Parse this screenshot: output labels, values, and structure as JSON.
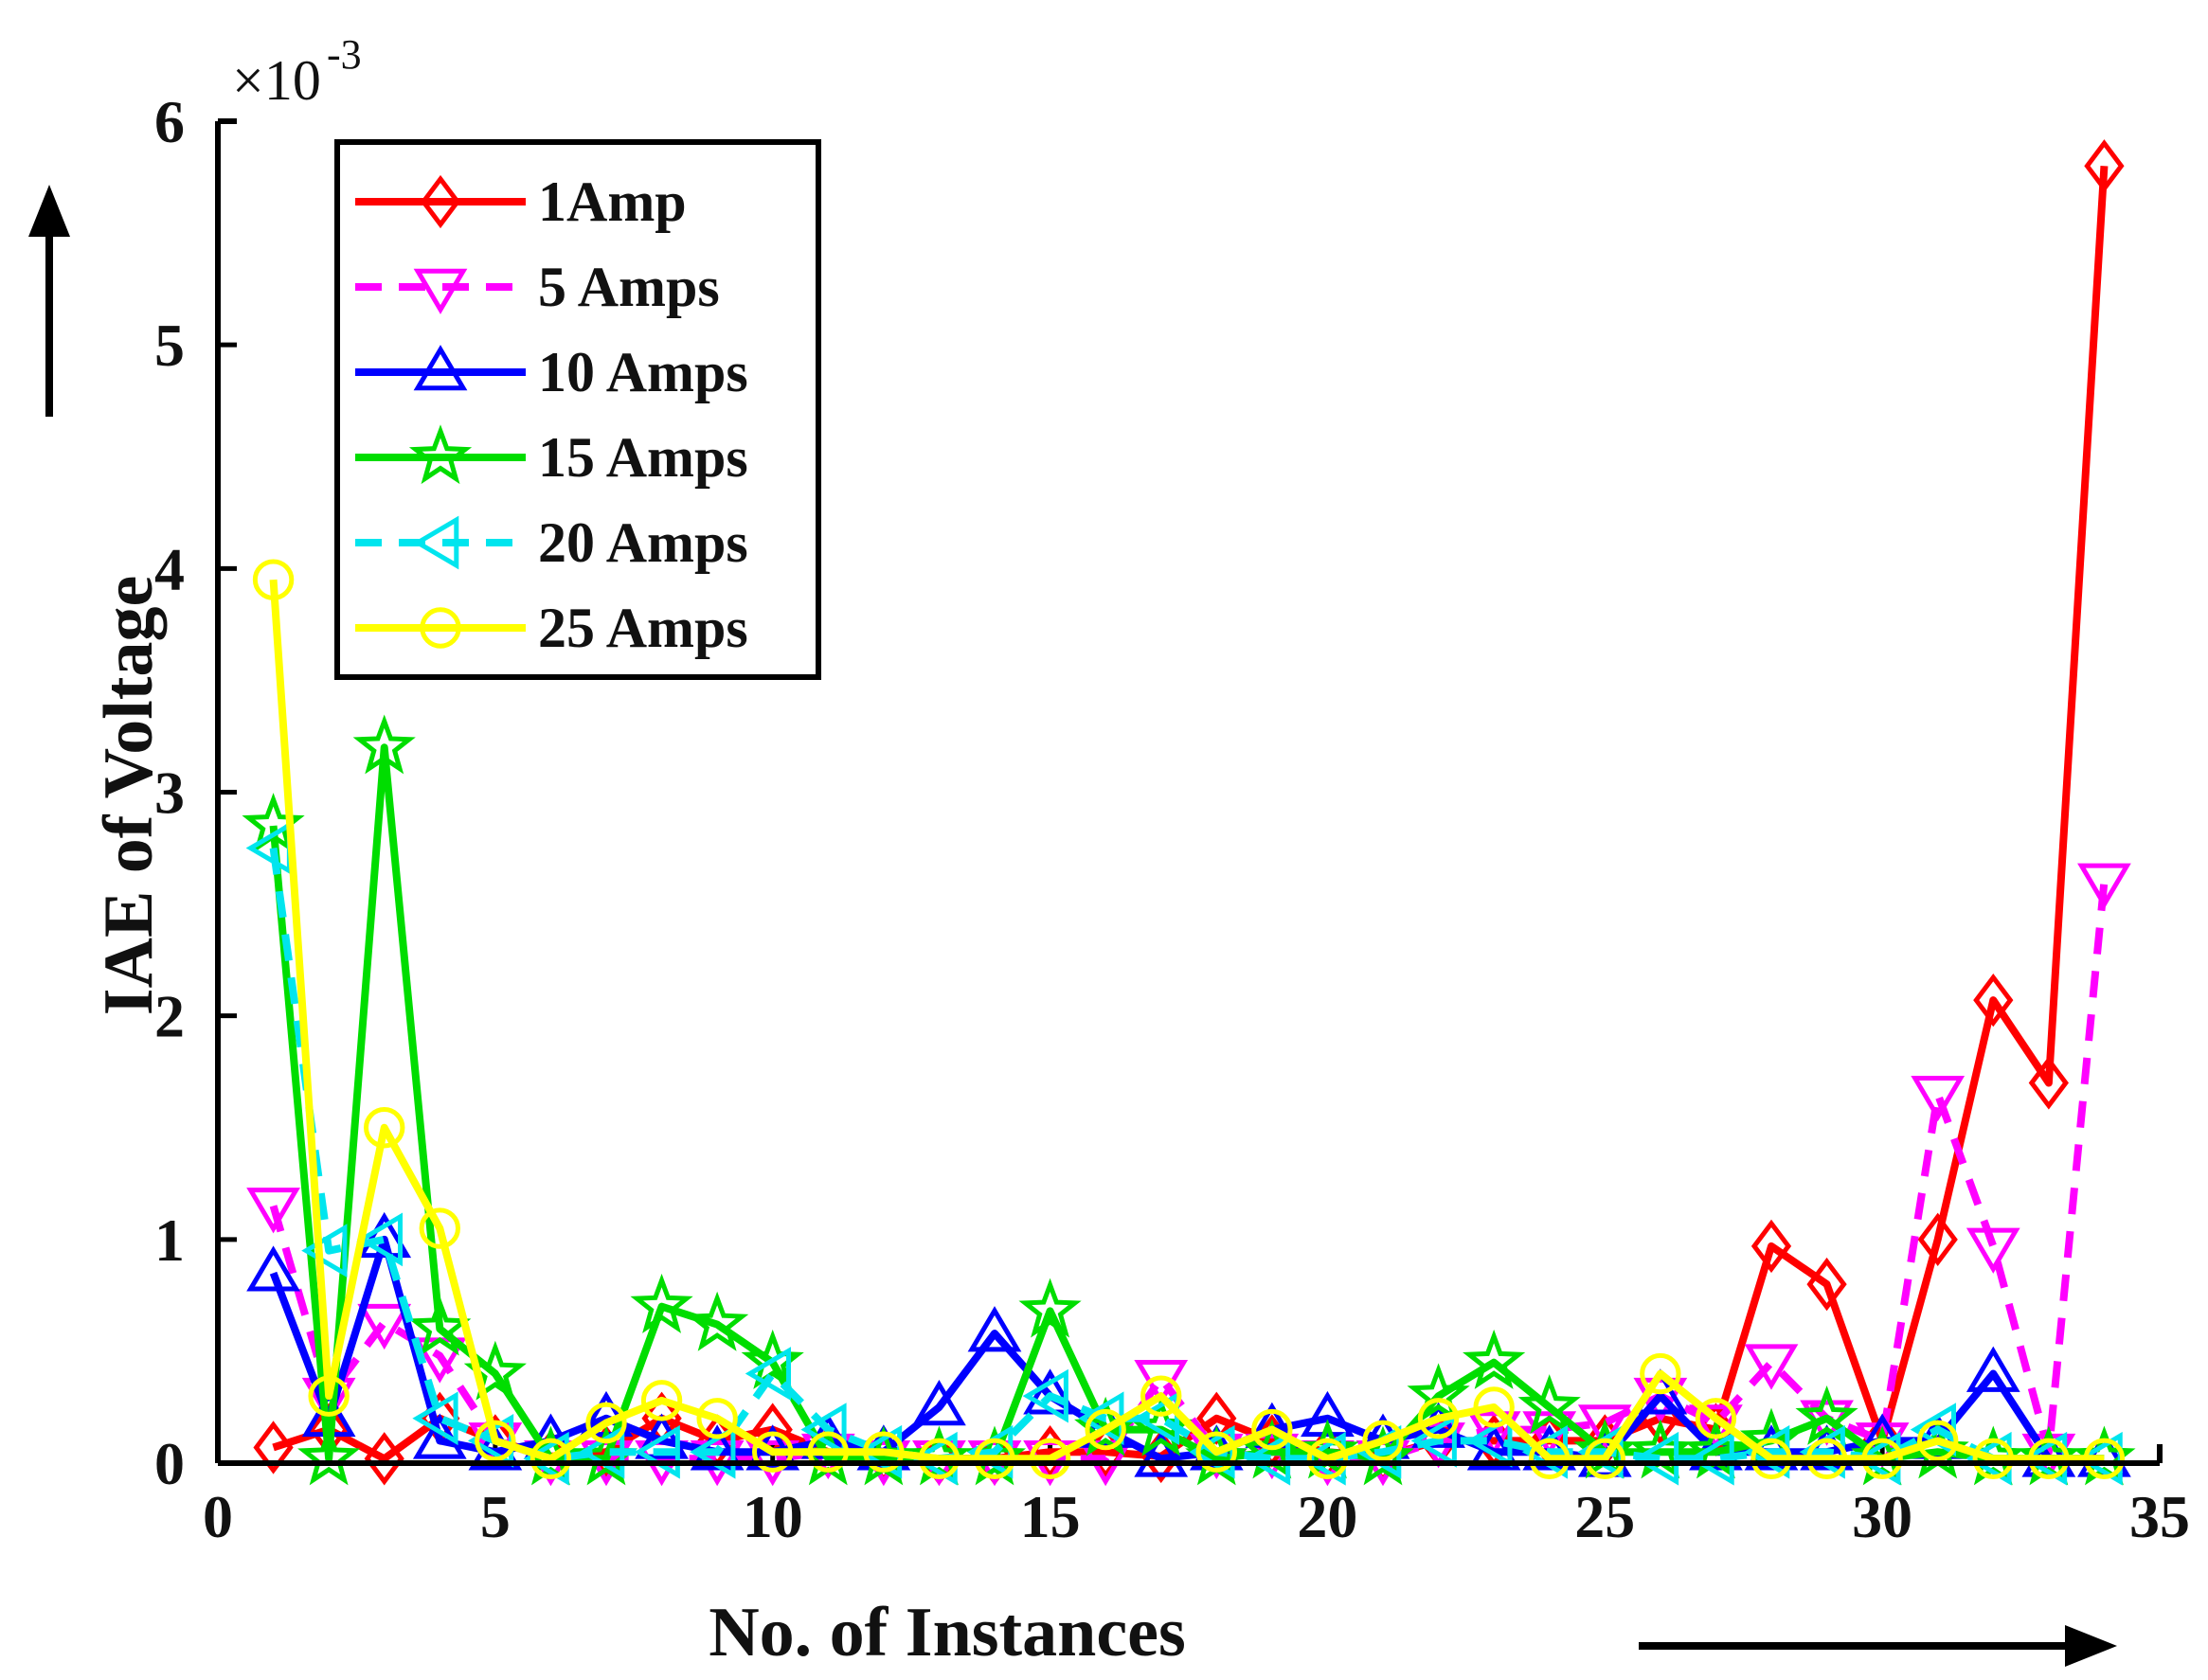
{
  "chart_data": {
    "type": "line",
    "title": "",
    "xlabel": "No. of Instances",
    "ylabel": "IAE of Voltage",
    "xlim": [
      0,
      35
    ],
    "ylim": [
      0,
      6
    ],
    "xticks": [
      0,
      5,
      10,
      15,
      20,
      25,
      30,
      35
    ],
    "yticks": [
      0,
      1,
      2,
      3,
      4,
      5,
      6
    ],
    "y_multiplier": "×10",
    "y_exponent": "-3",
    "legend_position": "top-left",
    "x": [
      1,
      2,
      3,
      4,
      5,
      6,
      7,
      8,
      9,
      10,
      11,
      12,
      13,
      14,
      15,
      16,
      17,
      18,
      19,
      20,
      21,
      22,
      23,
      24,
      25,
      26,
      27,
      28,
      29,
      30,
      31,
      32,
      33,
      34
    ],
    "series": [
      {
        "name": "1Amp",
        "color": "#ff0000",
        "dash": "solid",
        "marker": "diamond",
        "values": [
          0.07,
          0.15,
          0.02,
          0.2,
          0.1,
          0.03,
          0.05,
          0.2,
          0.1,
          0.15,
          0.05,
          0.03,
          0.02,
          0.02,
          0.05,
          0.05,
          0.03,
          0.2,
          0.1,
          0.05,
          0.03,
          0.1,
          0.1,
          0.1,
          0.1,
          0.2,
          0.15,
          0.97,
          0.8,
          0.1,
          1.0,
          2.07,
          1.7,
          5.8
        ]
      },
      {
        "name": "5 Amps",
        "color": "#ff00ff",
        "dash": "dashed",
        "marker": "triangle-down",
        "values": [
          1.15,
          0.3,
          0.63,
          0.48,
          0.1,
          0.02,
          0.02,
          0.02,
          0.02,
          0.02,
          0.05,
          0.02,
          0.02,
          0.02,
          0.02,
          0.02,
          0.38,
          0.05,
          0.05,
          0.02,
          0.02,
          0.1,
          0.15,
          0.15,
          0.18,
          0.3,
          0.18,
          0.45,
          0.2,
          0.1,
          1.65,
          0.97,
          0.05,
          2.6
        ]
      },
      {
        "name": "10 Amps",
        "color": "#0000ff",
        "dash": "solid",
        "marker": "triangle-up",
        "values": [
          0.85,
          0.2,
          1.0,
          0.1,
          0.05,
          0.1,
          0.2,
          0.1,
          0.05,
          0.05,
          0.1,
          0.05,
          0.25,
          0.58,
          0.3,
          0.15,
          0.02,
          0.05,
          0.15,
          0.2,
          0.1,
          0.15,
          0.05,
          0.05,
          0.02,
          0.3,
          0.05,
          0.05,
          0.05,
          0.1,
          0.1,
          0.4,
          0.02,
          0.02
        ]
      },
      {
        "name": "15 Amps",
        "color": "#00dd00",
        "dash": "solid",
        "marker": "star",
        "values": [
          2.85,
          0.02,
          3.2,
          0.6,
          0.4,
          0.02,
          0.02,
          0.7,
          0.62,
          0.45,
          0.02,
          0.02,
          0.02,
          0.02,
          0.68,
          0.15,
          0.15,
          0.02,
          0.05,
          0.05,
          0.02,
          0.3,
          0.45,
          0.25,
          0.05,
          0.05,
          0.05,
          0.1,
          0.2,
          0.02,
          0.05,
          0.02,
          0.02,
          0.02
        ]
      },
      {
        "name": "20 Amps",
        "color": "#00e5ee",
        "dash": "dashed",
        "marker": "triangle-left",
        "values": [
          2.75,
          0.95,
          1.0,
          0.2,
          0.1,
          0.02,
          0.05,
          0.05,
          0.05,
          0.4,
          0.15,
          0.05,
          0.02,
          0.05,
          0.3,
          0.2,
          0.2,
          0.05,
          0.02,
          0.02,
          0.05,
          0.1,
          0.1,
          0.05,
          0.05,
          0.02,
          0.02,
          0.05,
          0.05,
          0.02,
          0.15,
          0.02,
          0.02,
          0.02
        ]
      },
      {
        "name": "25 Amps",
        "color": "#ffff00",
        "dash": "solid",
        "marker": "circle",
        "values": [
          3.95,
          0.3,
          1.5,
          1.05,
          0.1,
          0.02,
          0.18,
          0.28,
          0.2,
          0.05,
          0.05,
          0.05,
          0.02,
          0.02,
          0.02,
          0.15,
          0.3,
          0.05,
          0.15,
          0.02,
          0.1,
          0.2,
          0.25,
          0.02,
          0.02,
          0.4,
          0.2,
          0.02,
          0.02,
          0.02,
          0.1,
          0.02,
          0.02,
          0.02
        ]
      }
    ]
  }
}
